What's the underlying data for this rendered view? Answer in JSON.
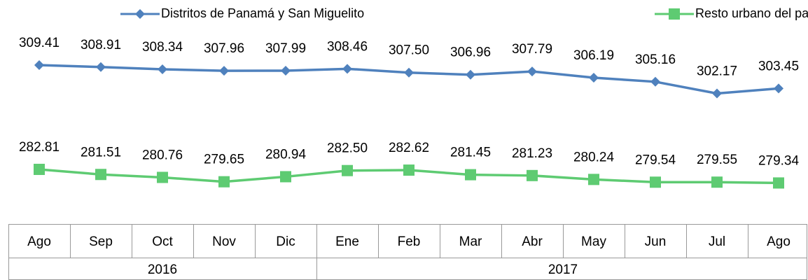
{
  "chart_data": {
    "type": "line",
    "category_groups": [
      {
        "label": "2016",
        "categories": [
          "Ago",
          "Sep",
          "Oct",
          "Nov",
          "Dic"
        ]
      },
      {
        "label": "2017",
        "categories": [
          "Ene",
          "Feb",
          "Mar",
          "Abr",
          "May",
          "Jun",
          "Jul",
          "Ago"
        ]
      }
    ],
    "series": [
      {
        "name": "Distritos de Panamá y San Miguelito",
        "color": "#4f81bd",
        "marker": "diamond",
        "values": [
          309.41,
          308.91,
          308.34,
          307.96,
          307.99,
          308.46,
          307.5,
          306.96,
          307.79,
          306.19,
          305.16,
          302.17,
          303.45
        ],
        "value_labels": [
          "309.41",
          "308.91",
          "308.34",
          "307.96",
          "307.99",
          "308.46",
          "307.50",
          "306.96",
          "307.79",
          "306.19",
          "305.16",
          "302.17",
          "303.45"
        ]
      },
      {
        "name": "Resto urbano del país",
        "color": "#5ecb72",
        "marker": "square",
        "values": [
          282.81,
          281.51,
          280.76,
          279.65,
          280.94,
          282.5,
          282.62,
          281.45,
          281.23,
          280.24,
          279.54,
          279.55,
          279.34
        ],
        "value_labels": [
          "282.81",
          "281.51",
          "280.76",
          "279.65",
          "280.94",
          "282.50",
          "282.62",
          "281.45",
          "281.23",
          "280.24",
          "279.54",
          "279.55",
          "279.34"
        ]
      }
    ],
    "ylim": [
      270,
      320
    ],
    "legend": "top"
  }
}
